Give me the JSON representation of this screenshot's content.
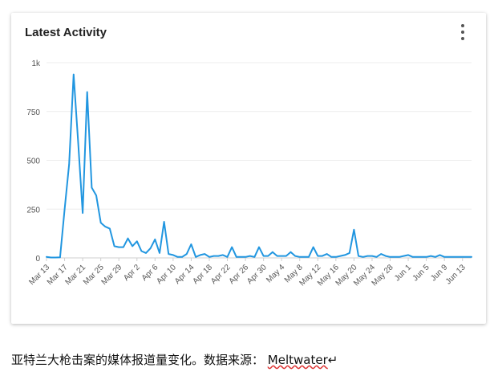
{
  "card": {
    "title": "Latest Activity",
    "menu_icon": "more-vert-icon"
  },
  "chart_data": {
    "type": "line",
    "title": "Latest Activity",
    "xlabel": "",
    "ylabel": "",
    "ylim": [
      0,
      1000
    ],
    "y_ticks": [
      "0",
      "250",
      "500",
      "750",
      "1k"
    ],
    "y_tick_values": [
      0,
      250,
      500,
      750,
      1000
    ],
    "x_ticks": [
      "Mar 13",
      "Mar 17",
      "Mar 21",
      "Mar 25",
      "Mar 29",
      "Apr 2",
      "Apr 6",
      "Apr 10",
      "Apr 14",
      "Apr 18",
      "Apr 22",
      "Apr 26",
      "Apr 30",
      "May 4",
      "May 8",
      "May 12",
      "May 16",
      "May 20",
      "May 24",
      "May 28",
      "Jun 1",
      "Jun 5",
      "Jun 9",
      "Jun 13"
    ],
    "x_start": "Mar 13",
    "grid": true,
    "legend": "none",
    "line_color": "#2196e0",
    "values": [
      5,
      2,
      2,
      3,
      250,
      480,
      940,
      590,
      230,
      850,
      360,
      320,
      180,
      160,
      150,
      60,
      55,
      55,
      100,
      60,
      85,
      35,
      25,
      50,
      95,
      25,
      185,
      20,
      15,
      5,
      5,
      20,
      70,
      5,
      15,
      20,
      5,
      10,
      10,
      15,
      5,
      55,
      5,
      5,
      5,
      10,
      5,
      55,
      10,
      10,
      30,
      10,
      10,
      10,
      30,
      10,
      5,
      5,
      5,
      55,
      10,
      10,
      20,
      5,
      5,
      10,
      15,
      25,
      145,
      10,
      5,
      10,
      10,
      5,
      20,
      10,
      5,
      5,
      5,
      10,
      15,
      5,
      5,
      5,
      5,
      10,
      5,
      15,
      5,
      5,
      5,
      5,
      5,
      5,
      5
    ]
  },
  "caption": {
    "text": "亚特兰大枪击案的媒体报道量变化。数据来源： ",
    "source": "Meltwater",
    "return_mark": "↵"
  }
}
